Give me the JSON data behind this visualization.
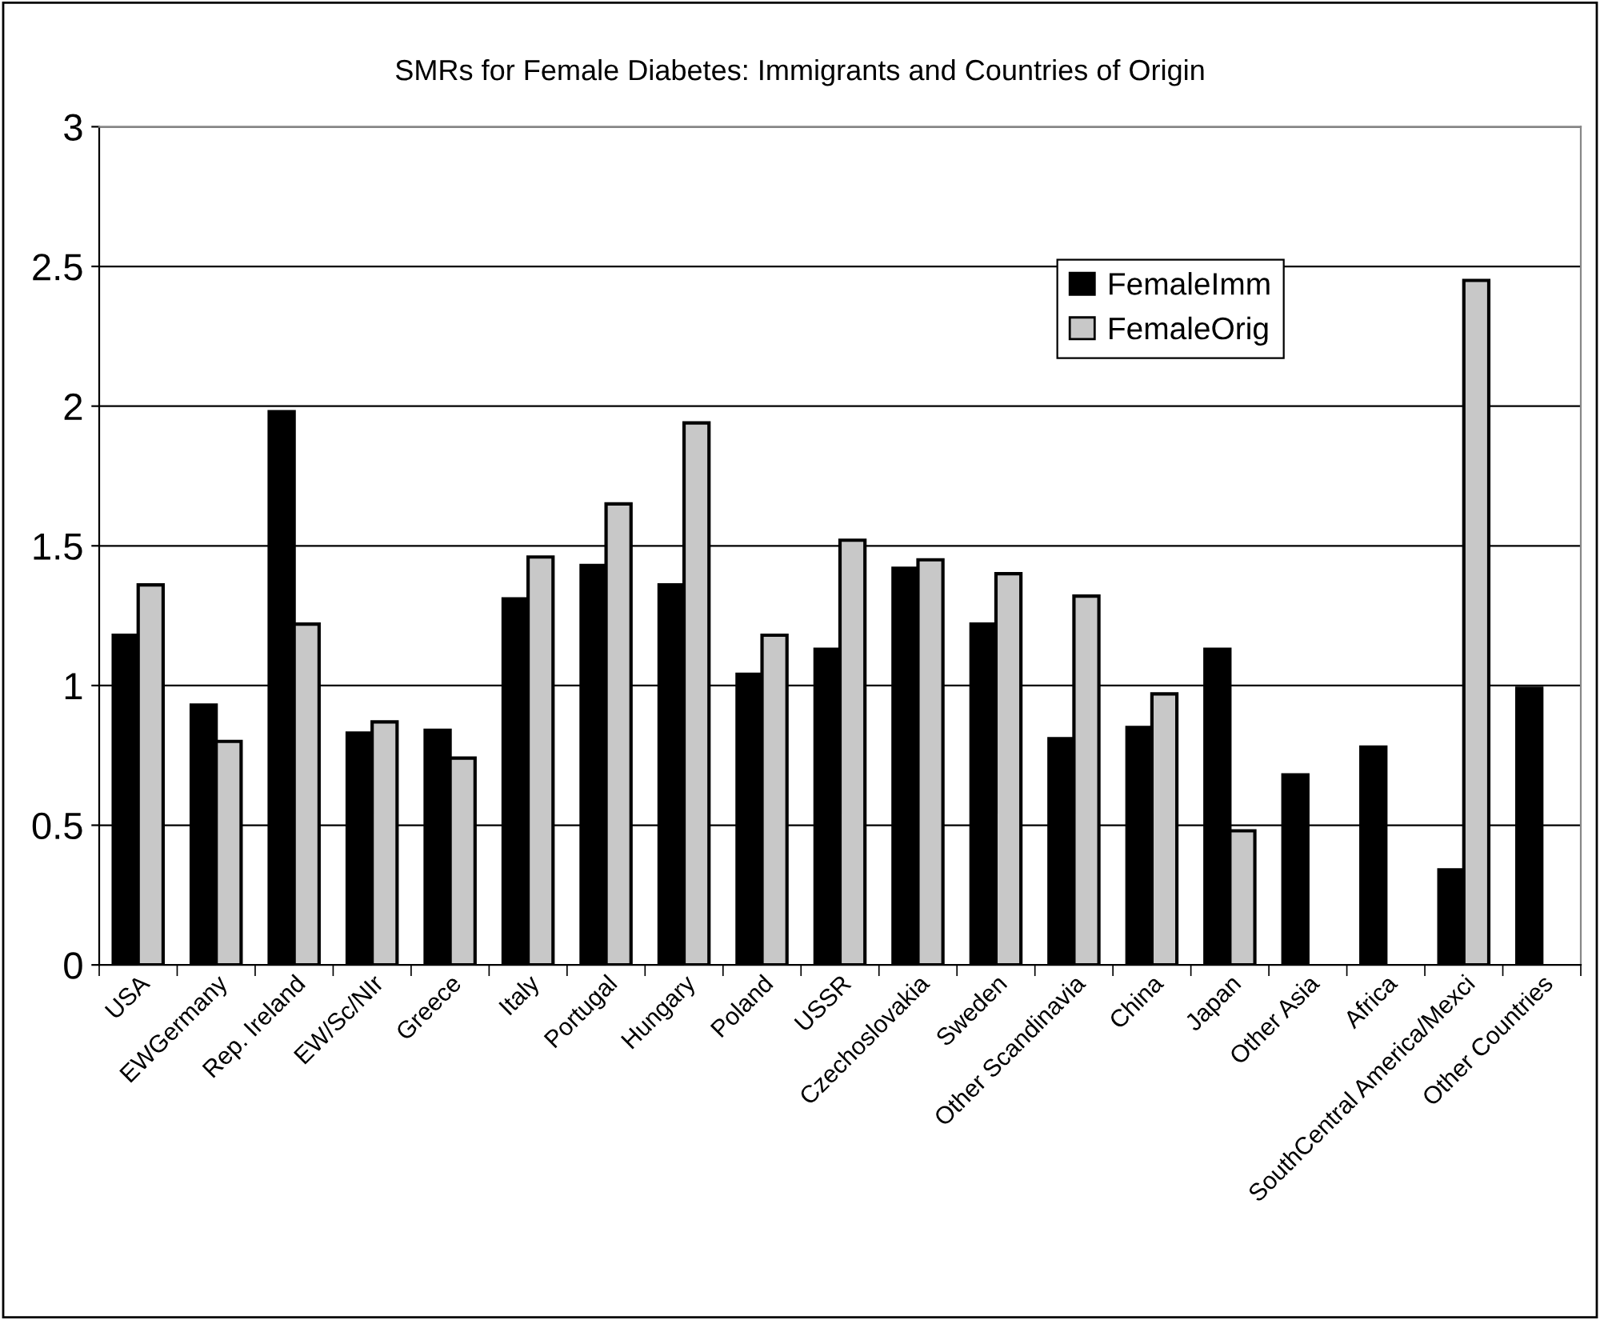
{
  "chart_data": {
    "type": "bar",
    "title": "SMRs for Female Diabetes: Immigrants and Countries of Origin",
    "categories": [
      "USA",
      "EWGermany",
      "Rep. Ireland",
      "EW/Sc/NIr",
      "Greece",
      "Italy",
      "Portugal",
      "Hungary",
      "Poland",
      "USSR",
      "Czechoslovakia",
      "Sweden",
      "Other Scandinavia",
      "China",
      "Japan",
      "Other Asia",
      "Africa",
      "SouthCentral America/Mexci",
      "Other Countries"
    ],
    "series": [
      {
        "name": "FemaleImm",
        "color": "#000000",
        "values": [
          1.18,
          0.93,
          1.98,
          0.83,
          0.84,
          1.31,
          1.43,
          1.36,
          1.04,
          1.13,
          1.42,
          1.22,
          0.81,
          0.85,
          1.13,
          0.68,
          0.78,
          0.34,
          0.99
        ]
      },
      {
        "name": "FemaleOrig",
        "color": "#c8c8c8",
        "values": [
          1.36,
          0.8,
          1.22,
          0.87,
          0.74,
          1.46,
          1.65,
          1.94,
          1.18,
          1.52,
          1.45,
          1.4,
          1.32,
          0.97,
          0.48,
          null,
          null,
          2.45,
          null
        ]
      }
    ],
    "ylim": [
      0,
      3
    ],
    "yticks": [
      0,
      0.5,
      1,
      1.5,
      2,
      2.5,
      3
    ],
    "grid": "y",
    "legend": "top right"
  }
}
